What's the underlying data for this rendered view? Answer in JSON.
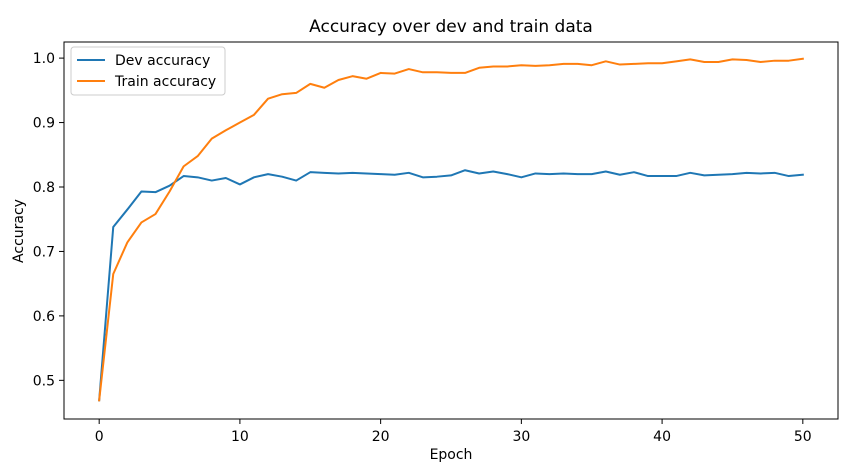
{
  "chart_data": {
    "type": "line",
    "title": "Accuracy over dev and train data",
    "xlabel": "Epoch",
    "ylabel": "Accuracy",
    "xlim": [
      -2.5,
      52.5
    ],
    "ylim": [
      0.44,
      1.025
    ],
    "x_ticks": [
      0,
      10,
      20,
      30,
      40,
      50
    ],
    "y_ticks": [
      0.5,
      0.6,
      0.7,
      0.8,
      0.9,
      1.0
    ],
    "x_tick_labels": [
      "0",
      "10",
      "20",
      "30",
      "40",
      "50"
    ],
    "y_tick_labels": [
      "0.5",
      "0.6",
      "0.7",
      "0.8",
      "0.9",
      "1.0"
    ],
    "grid": false,
    "legend_position": "upper-left",
    "x": [
      0,
      1,
      2,
      3,
      4,
      5,
      6,
      7,
      8,
      9,
      10,
      11,
      12,
      13,
      14,
      15,
      16,
      17,
      18,
      19,
      20,
      21,
      22,
      23,
      24,
      25,
      26,
      27,
      28,
      29,
      30,
      31,
      32,
      33,
      34,
      35,
      36,
      37,
      38,
      39,
      40,
      41,
      42,
      43,
      44,
      45,
      46,
      47,
      48,
      49,
      50
    ],
    "series": [
      {
        "name": "Dev accuracy",
        "color": "#1f77b4",
        "values": [
          0.469,
          0.738,
          0.765,
          0.793,
          0.792,
          0.802,
          0.817,
          0.815,
          0.81,
          0.814,
          0.804,
          0.815,
          0.82,
          0.816,
          0.81,
          0.823,
          0.822,
          0.821,
          0.822,
          0.821,
          0.82,
          0.819,
          0.822,
          0.815,
          0.816,
          0.818,
          0.826,
          0.821,
          0.824,
          0.82,
          0.815,
          0.821,
          0.82,
          0.821,
          0.82,
          0.82,
          0.824,
          0.819,
          0.823,
          0.817,
          0.817,
          0.817,
          0.822,
          0.818,
          0.819,
          0.82,
          0.822,
          0.821,
          0.822,
          0.817,
          0.819
        ]
      },
      {
        "name": "Train accuracy",
        "color": "#ff7f0e",
        "values": [
          0.469,
          0.665,
          0.714,
          0.745,
          0.758,
          0.793,
          0.832,
          0.848,
          0.875,
          0.888,
          0.9,
          0.912,
          0.937,
          0.944,
          0.946,
          0.96,
          0.954,
          0.966,
          0.972,
          0.968,
          0.977,
          0.976,
          0.983,
          0.978,
          0.978,
          0.977,
          0.977,
          0.985,
          0.987,
          0.987,
          0.989,
          0.988,
          0.989,
          0.991,
          0.991,
          0.989,
          0.995,
          0.99,
          0.991,
          0.992,
          0.992,
          0.995,
          0.998,
          0.994,
          0.994,
          0.998,
          0.997,
          0.994,
          0.996,
          0.996,
          0.999
        ]
      }
    ]
  }
}
